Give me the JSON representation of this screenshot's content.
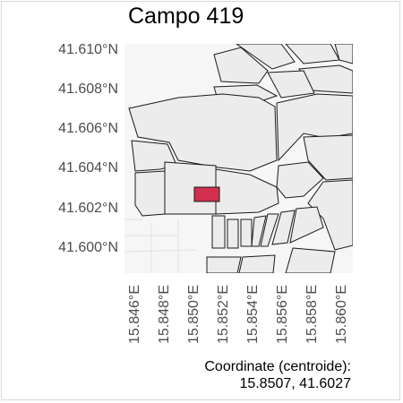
{
  "title": "Campo 419",
  "y_ticks": [
    "41.610°N",
    "41.608°N",
    "41.606°N",
    "41.604°N",
    "41.602°N",
    "41.600°N"
  ],
  "x_ticks": [
    "15.846°E",
    "15.848°E",
    "15.850°E",
    "15.852°E",
    "15.854°E",
    "15.856°E",
    "15.858°E",
    "15.860°E"
  ],
  "coordinate_label": "Coordinate (centroide):",
  "coordinate_value": "15.8507, 41.6027",
  "colors": {
    "highlight_fill": "#d1304f",
    "parcel_fill": "#ececec",
    "parcel_stroke": "#1a1a1a",
    "background": "#f6f6f6"
  }
}
